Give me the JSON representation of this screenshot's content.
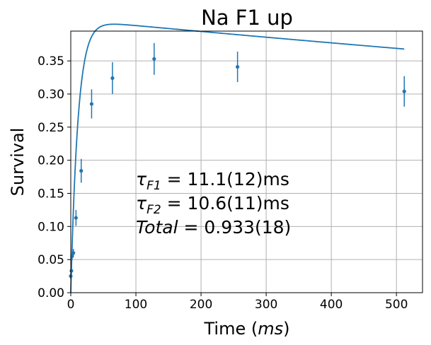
{
  "chart_data": {
    "type": "scatter",
    "title": "Na F1 up",
    "xlabel_prefix": "Time (",
    "xlabel_var": "ms",
    "xlabel_suffix": ")",
    "ylabel": "Survival",
    "xlim": [
      0,
      540
    ],
    "ylim": [
      0,
      0.395
    ],
    "grid": true,
    "x_ticks": [
      0,
      100,
      200,
      300,
      400,
      500
    ],
    "y_ticks": [
      0.0,
      0.05,
      0.1,
      0.15,
      0.2,
      0.25,
      0.3,
      0.35
    ],
    "x_tick_labels": [
      "0",
      "100",
      "200",
      "300",
      "400",
      "500"
    ],
    "y_tick_labels": [
      "0.00",
      "0.05",
      "0.10",
      "0.15",
      "0.20",
      "0.25",
      "0.30",
      "0.35"
    ],
    "color": "#1f77b4",
    "points": [
      {
        "x": 0,
        "y": 0.025,
        "err": 0.004
      },
      {
        "x": 1,
        "y": 0.033,
        "err": 0.005
      },
      {
        "x": 2,
        "y": 0.055,
        "err": 0.006
      },
      {
        "x": 4,
        "y": 0.06,
        "err": 0.006
      },
      {
        "x": 8,
        "y": 0.113,
        "err": 0.012
      },
      {
        "x": 16,
        "y": 0.184,
        "err": 0.018
      },
      {
        "x": 32,
        "y": 0.285,
        "err": 0.022
      },
      {
        "x": 64,
        "y": 0.324,
        "err": 0.024
      },
      {
        "x": 128,
        "y": 0.353,
        "err": 0.024
      },
      {
        "x": 256,
        "y": 0.341,
        "err": 0.023
      },
      {
        "x": 512,
        "y": 0.304,
        "err": 0.023
      }
    ],
    "fit_curve": {
      "amplitude": 0.4125,
      "tau_rise": 11.1,
      "tau_decay": 4480
    },
    "annotations": [
      {
        "sym": "τ",
        "sub": "F1",
        "rest": " = 11.1(12)ms"
      },
      {
        "sym": "τ",
        "sub": "F2",
        "rest": " = 10.6(11)ms"
      },
      {
        "sym": "Total",
        "sub": "",
        "rest": " = 0.933(18)"
      }
    ]
  }
}
